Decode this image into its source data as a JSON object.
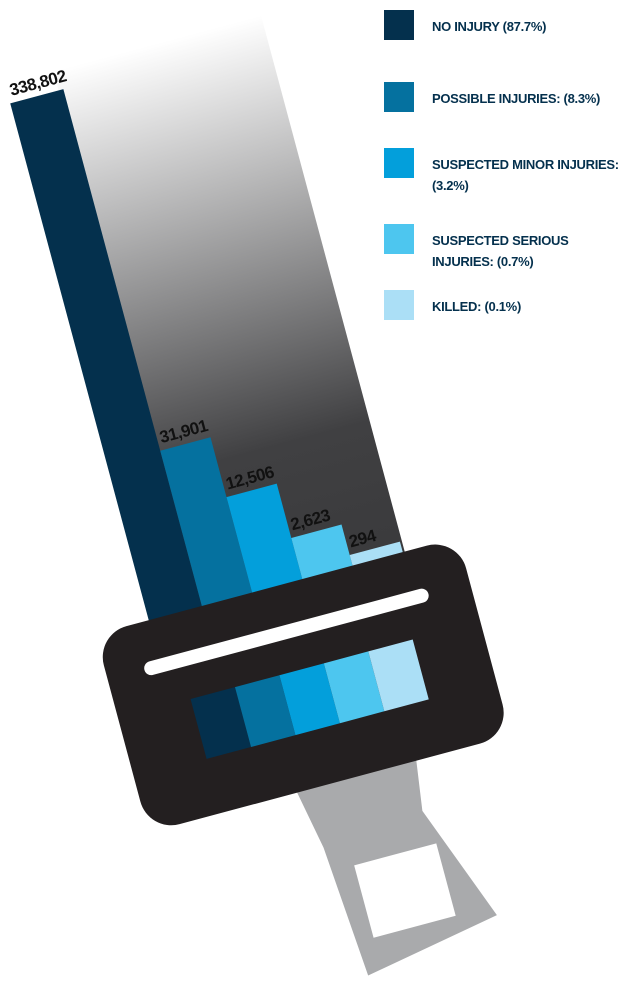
{
  "chart_data": {
    "type": "bar",
    "categories": [
      "NO INJURY (87.7%)",
      "POSSIBLE INJURIES: (8.3%)",
      "SUSPECTED MINOR INJURIES: (3.2%)",
      "SUSPECTED SERIOUS INJURIES: (0.7%)",
      "KILLED: (0.1%)"
    ],
    "values": [
      338802,
      31901,
      12506,
      2623,
      294
    ],
    "value_labels": [
      "338,802",
      "31,901",
      "12,506",
      "2,623",
      "294"
    ],
    "colors": [
      "#04304d",
      "#05719f",
      "#039fdb",
      "#4dc6ef",
      "#abdff6"
    ]
  }
}
